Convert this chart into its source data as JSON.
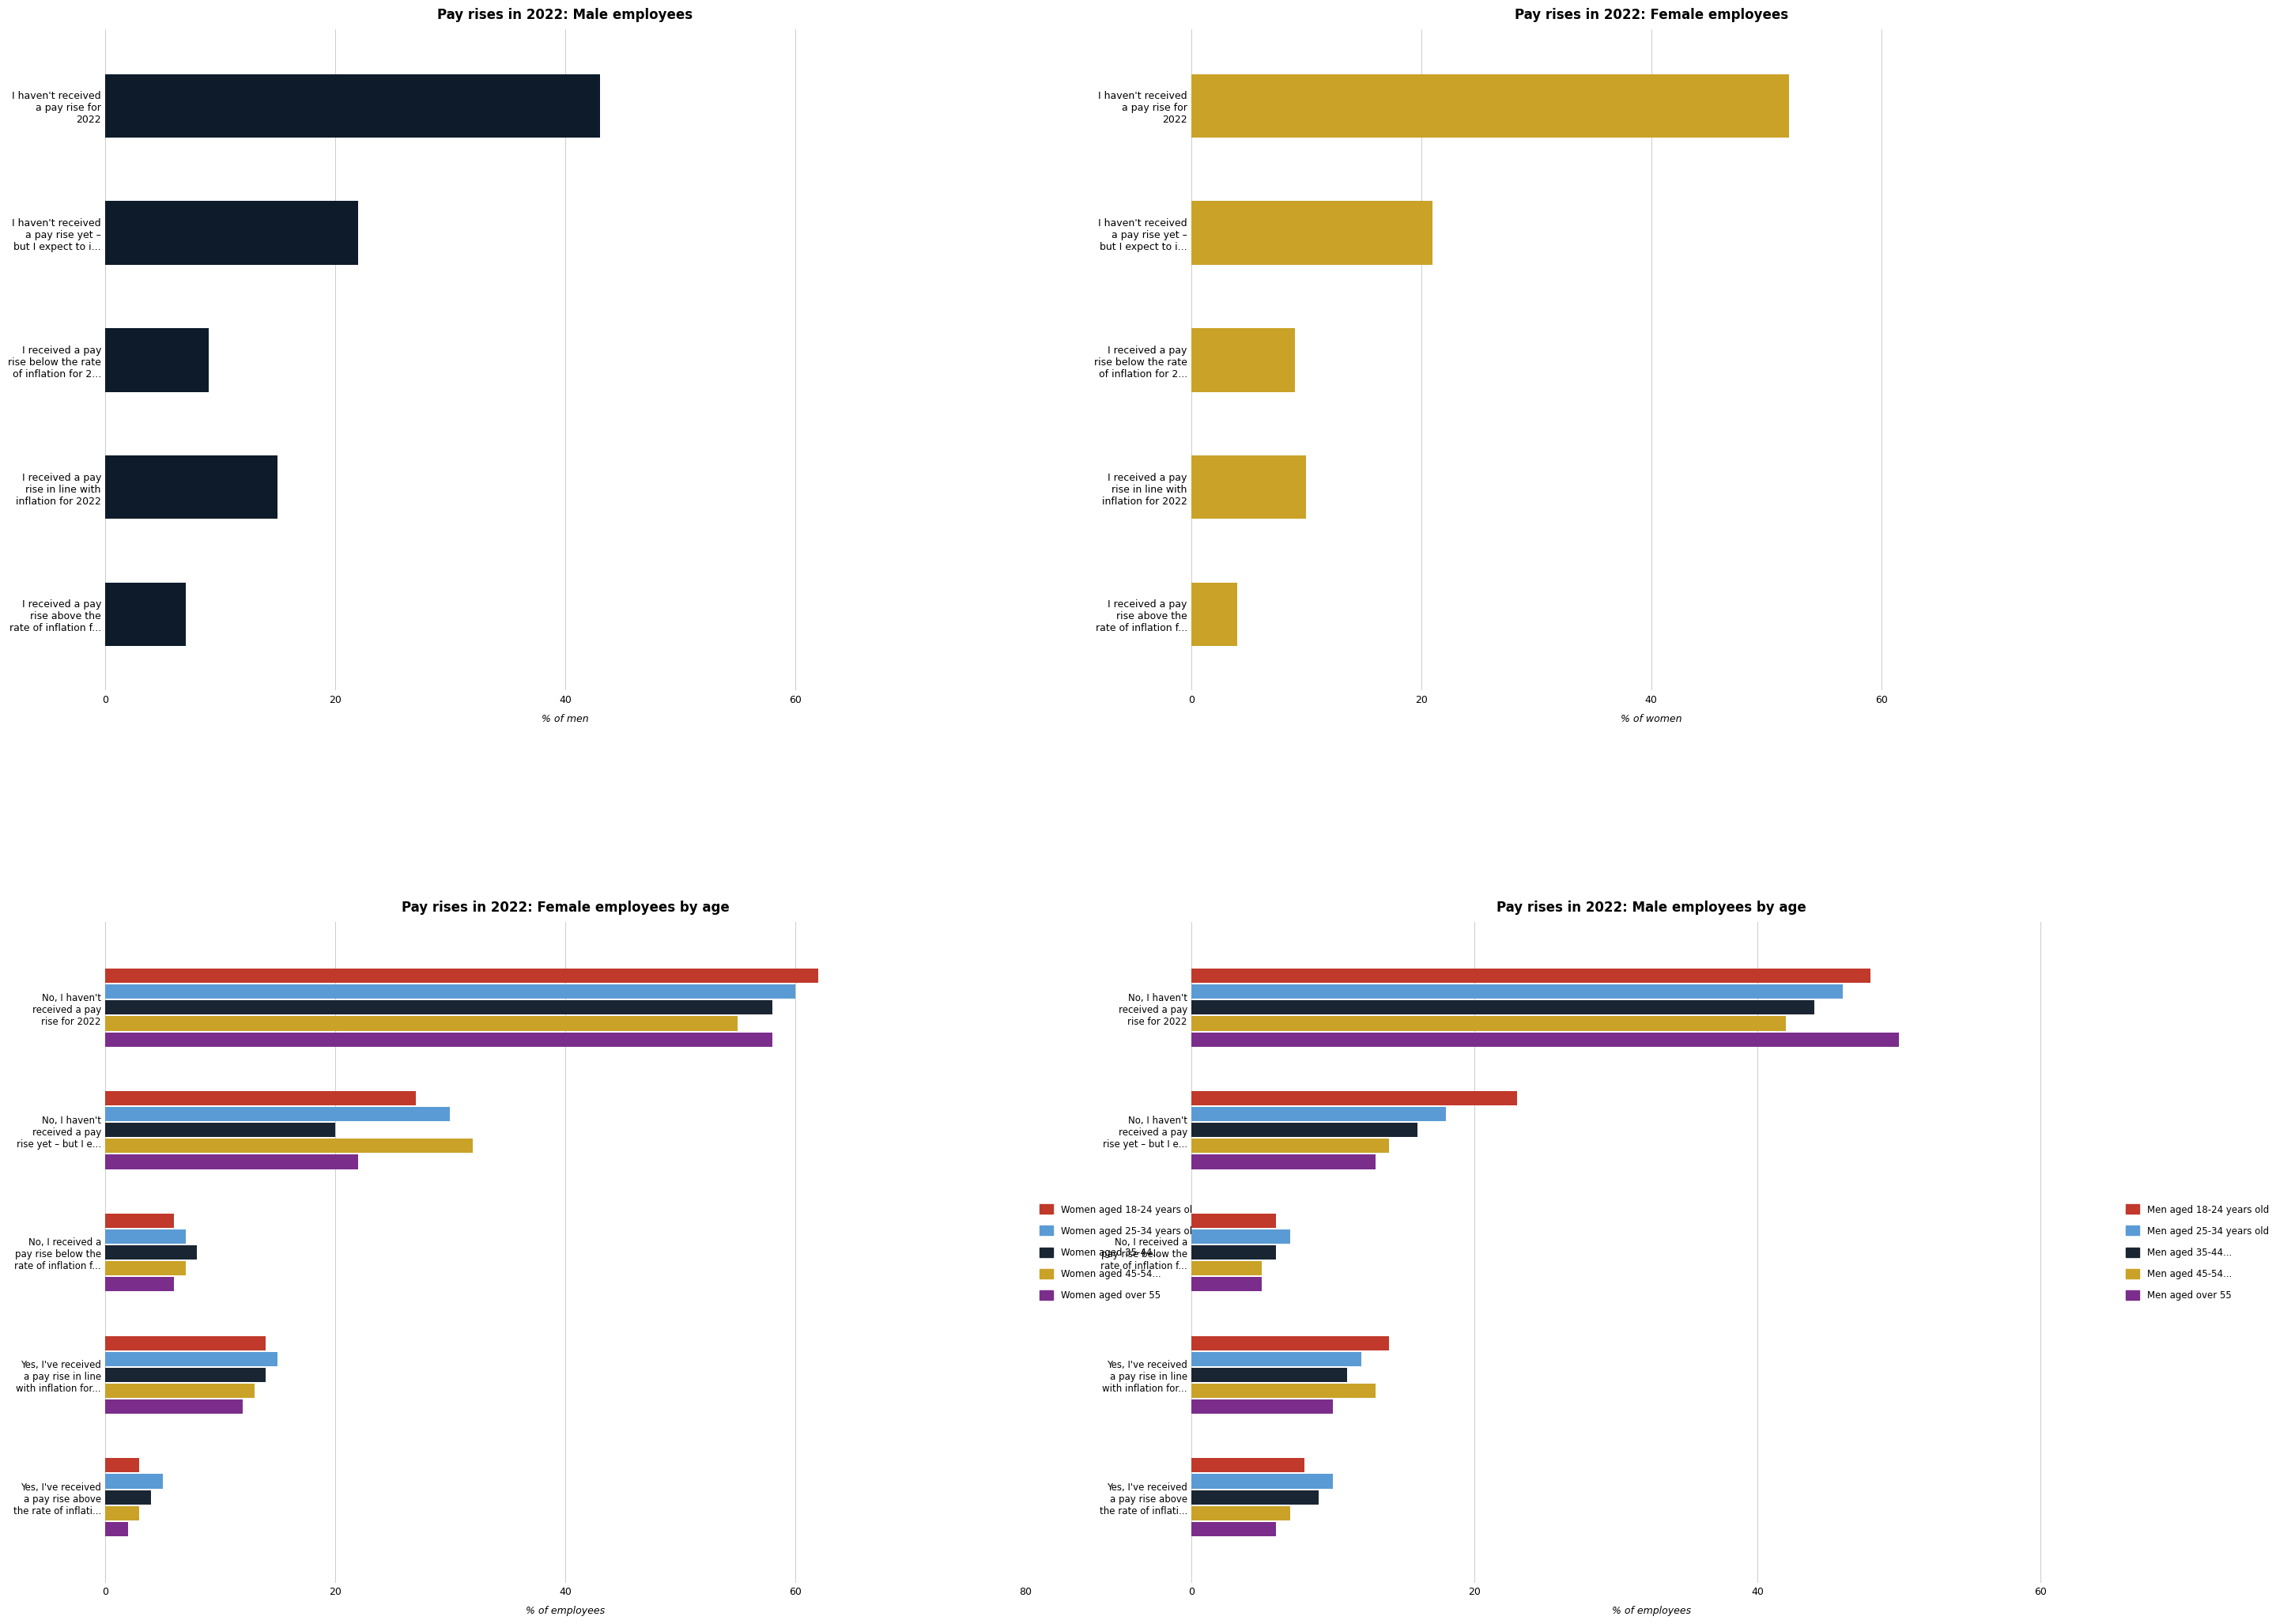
{
  "top_left": {
    "title": "Pay rises in 2022: Male employees",
    "color": "#0d1b2a",
    "xlabel": "% of men",
    "categories": [
      "I haven't received\na pay rise for\n2022",
      "I haven't received\na pay rise yet –\nbut I expect to i...",
      "I received a pay\nrise below the rate\nof inflation for 2...",
      "I received a pay\nrise in line with\ninflation for 2022",
      "I received a pay\nrise above the\nrate of inflation f..."
    ],
    "values": [
      43,
      22,
      9,
      15,
      7
    ],
    "xlim": [
      0,
      80
    ]
  },
  "top_right": {
    "title": "Pay rises in 2022: Female employees",
    "color": "#c9a227",
    "xlabel": "% of women",
    "categories": [
      "I haven't received\na pay rise for\n2022",
      "I haven't received\na pay rise yet –\nbut I expect to i...",
      "I received a pay\nrise below the rate\nof inflation for 2...",
      "I received a pay\nrise in line with\ninflation for 2022",
      "I received a pay\nrise above the\nrate of inflation f..."
    ],
    "values": [
      52,
      21,
      9,
      10,
      4
    ],
    "xlim": [
      0,
      80
    ]
  },
  "bottom_left": {
    "title": "Pay rises in 2022: Female employees by age",
    "xlabel": "% of employees",
    "categories": [
      "No, I haven't\nreceived a pay\nrise for 2022",
      "No, I haven't\nreceived a pay\nrise yet – but I e...",
      "No, I received a\npay rise below the\nrate of inflation f...",
      "Yes, I've received\na pay rise in line\nwith inflation for...",
      "Yes, I've received\na pay rise above\nthe rate of inflati..."
    ],
    "series": {
      "Women aged 18-24 years old": {
        "color": "#c0392b",
        "values": [
          62,
          27,
          6,
          14,
          3
        ]
      },
      "Women aged 25-34 years old": {
        "color": "#5b9bd5",
        "values": [
          60,
          30,
          7,
          15,
          5
        ]
      },
      "Women aged 35-44...": {
        "color": "#1a2533",
        "values": [
          58,
          20,
          8,
          14,
          4
        ]
      },
      "Women aged 45-54...": {
        "color": "#c9a227",
        "values": [
          55,
          32,
          7,
          13,
          3
        ]
      },
      "Women aged over 55": {
        "color": "#7b2d8b",
        "values": [
          58,
          22,
          6,
          12,
          2
        ]
      }
    },
    "xlim": [
      0,
      80
    ]
  },
  "bottom_right": {
    "title": "Pay rises in 2022: Male employees by age",
    "xlabel": "% of employees",
    "categories": [
      "No, I haven't\nreceived a pay\nrise for 2022",
      "No, I haven't\nreceived a pay\nrise yet – but I e...",
      "No, I received a\npay rise below the\nrate of inflation f...",
      "Yes, I've received\na pay rise in line\nwith inflation for...",
      "Yes, I've received\na pay rise above\nthe rate of inflati..."
    ],
    "series": {
      "Men aged 18-24 years old": {
        "color": "#c0392b",
        "values": [
          48,
          23,
          6,
          14,
          8
        ]
      },
      "Men aged 25-34 years old": {
        "color": "#5b9bd5",
        "values": [
          46,
          18,
          7,
          12,
          10
        ]
      },
      "Men aged 35-44...": {
        "color": "#1a2533",
        "values": [
          44,
          16,
          6,
          11,
          9
        ]
      },
      "Men aged 45-54...": {
        "color": "#c9a227",
        "values": [
          42,
          14,
          5,
          13,
          7
        ]
      },
      "Men aged over 55": {
        "color": "#7b2d8b",
        "values": [
          50,
          13,
          5,
          10,
          6
        ]
      }
    },
    "xlim": [
      0,
      65
    ]
  },
  "background_color": "#f5f5f0"
}
